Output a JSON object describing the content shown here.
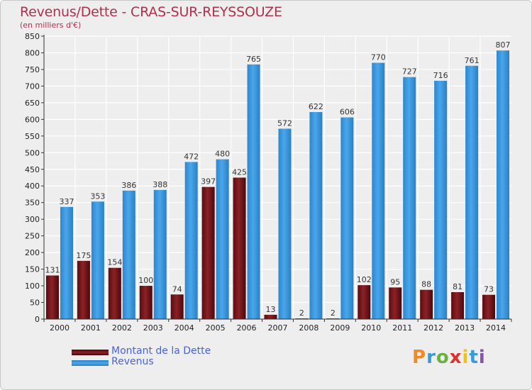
{
  "title": "Revenus/Dette - CRAS-SUR-REYSSOUZE",
  "subtitle": "(en milliers d'€)",
  "legend": {
    "dette": "Montant de la Dette",
    "revenus": "Revenus"
  },
  "logo": {
    "text": "Proxiti",
    "colors": [
      "#f08a24",
      "#3a9ad9",
      "#6ab23e",
      "#e0302a",
      "#f0c020",
      "#3a9ad9",
      "#8a4fb0"
    ]
  },
  "colors": {
    "dette": "#7a1a1e",
    "revenus": "#3b98e0",
    "grid": "#ffffff",
    "axis": "#333333"
  },
  "chart_data": {
    "type": "bar",
    "title": "Revenus/Dette - CRAS-SUR-REYSSOUZE",
    "subtitle": "(en milliers d'€)",
    "categories": [
      "2000",
      "2001",
      "2002",
      "2003",
      "2004",
      "2005",
      "2006",
      "2007",
      "2008",
      "2009",
      "2010",
      "2011",
      "2012",
      "2013",
      "2014"
    ],
    "series": [
      {
        "name": "Montant de la Dette",
        "values": [
          131,
          175,
          154,
          100,
          74,
          397,
          425,
          13,
          2,
          2,
          102,
          95,
          88,
          81,
          73
        ]
      },
      {
        "name": "Revenus",
        "values": [
          337,
          353,
          386,
          388,
          472,
          480,
          765,
          572,
          622,
          606,
          770,
          727,
          716,
          761,
          807
        ]
      }
    ],
    "ylim": [
      0,
      850
    ],
    "yticks": [
      0,
      50,
      100,
      150,
      200,
      250,
      300,
      350,
      400,
      450,
      500,
      550,
      600,
      650,
      700,
      750,
      800,
      850
    ],
    "grid": true,
    "legend_position": "bottom-left"
  }
}
